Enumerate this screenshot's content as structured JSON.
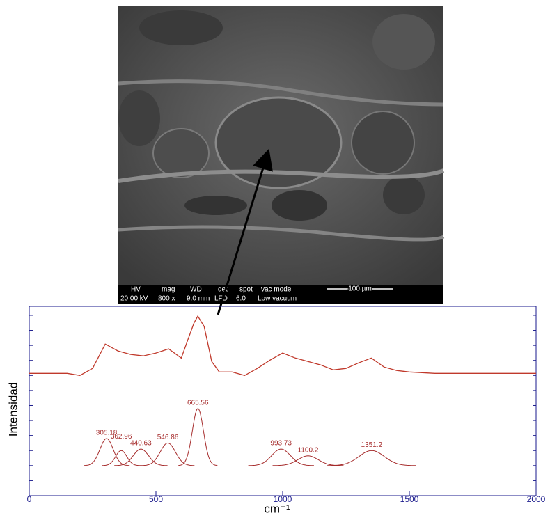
{
  "sem_image": {
    "info_bar": {
      "headers": [
        "HV",
        "mag",
        "WD",
        "det",
        "spot",
        "vac mode"
      ],
      "values": [
        "20.00 kV",
        "800 x",
        "9.0 mm",
        "LFD",
        "6.0",
        "Low vacuum"
      ],
      "scale_bar": "100 µm"
    }
  },
  "chart_data": {
    "type": "line",
    "x_label": "cm⁻¹",
    "y_label": "Intensidad",
    "xlim": [
      0,
      2000
    ],
    "xticks": [
      0,
      500,
      1000,
      1500,
      2000
    ],
    "ylim": [
      0,
      12.6
    ],
    "yticks": [
      0,
      1,
      2,
      3,
      4,
      5,
      6,
      7,
      8,
      9,
      10,
      11,
      12
    ],
    "series": [
      {
        "color": "#c0392b",
        "x": [
          0,
          150,
          200,
          250,
          300,
          350,
          400,
          450,
          500,
          550,
          600,
          625,
          650,
          665,
          690,
          720,
          750,
          800,
          850,
          900,
          950,
          1000,
          1050,
          1100,
          1150,
          1200,
          1250,
          1300,
          1350,
          1400,
          1450,
          1500,
          1600,
          1800,
          2000
        ],
        "values": [
          8.14,
          8.14,
          8.0,
          8.47,
          10.09,
          9.63,
          9.4,
          9.3,
          9.49,
          9.77,
          9.16,
          10.33,
          11.49,
          11.95,
          11.26,
          8.93,
          8.23,
          8.23,
          8.0,
          8.47,
          9.02,
          9.49,
          9.16,
          8.93,
          8.7,
          8.37,
          8.47,
          8.84,
          9.16,
          8.56,
          8.33,
          8.23,
          8.14,
          8.14,
          8.14
        ]
      }
    ],
    "peak_color": "#a52a2a",
    "peak_baseline": 2.0,
    "peaks": [
      {
        "center": 305.18,
        "height": 1.8,
        "sigma": 26
      },
      {
        "center": 362.96,
        "height": 1.0,
        "sigma": 22
      },
      {
        "center": 440.63,
        "height": 1.1,
        "sigma": 30
      },
      {
        "center": 546.86,
        "height": 1.5,
        "sigma": 30
      },
      {
        "center": 665.56,
        "height": 3.8,
        "sigma": 22
      },
      {
        "center": 993.73,
        "height": 1.1,
        "sigma": 37
      },
      {
        "center": 1100.2,
        "height": 0.65,
        "sigma": 40
      },
      {
        "center": 1351.2,
        "height": 1.0,
        "sigma": 50
      }
    ]
  }
}
